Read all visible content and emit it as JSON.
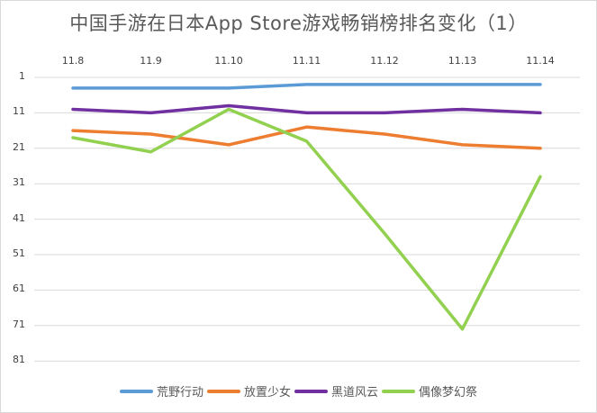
{
  "chart_data": {
    "type": "line",
    "title": "中国手游在日本App Store游戏畅销榜排名变化（1）",
    "xlabel": "",
    "ylabel": "",
    "categories": [
      "11.8",
      "11.9",
      "11.10",
      "11.11",
      "11.12",
      "11.13",
      "11.14"
    ],
    "y_ticks": [
      "1",
      "11",
      "21",
      "31",
      "41",
      "51",
      "61",
      "71",
      "81"
    ],
    "ylim": [
      1,
      81
    ],
    "y_inverted": true,
    "grid": true,
    "legend_position": "bottom",
    "series": [
      {
        "name": "荒野行动",
        "color": "#5B9BD5",
        "values": [
          4,
          4,
          4,
          3,
          3,
          3,
          3
        ]
      },
      {
        "name": "放置少女",
        "color": "#ED7D31",
        "values": [
          16,
          17,
          20,
          15,
          17,
          20,
          21
        ]
      },
      {
        "name": "黑道风云",
        "color": "#7030A0",
        "values": [
          10,
          11,
          9,
          11,
          11,
          10,
          11
        ]
      },
      {
        "name": "偶像梦幻祭",
        "color": "#92D050",
        "values": [
          18,
          22,
          10,
          19,
          45,
          72,
          29
        ]
      }
    ]
  }
}
